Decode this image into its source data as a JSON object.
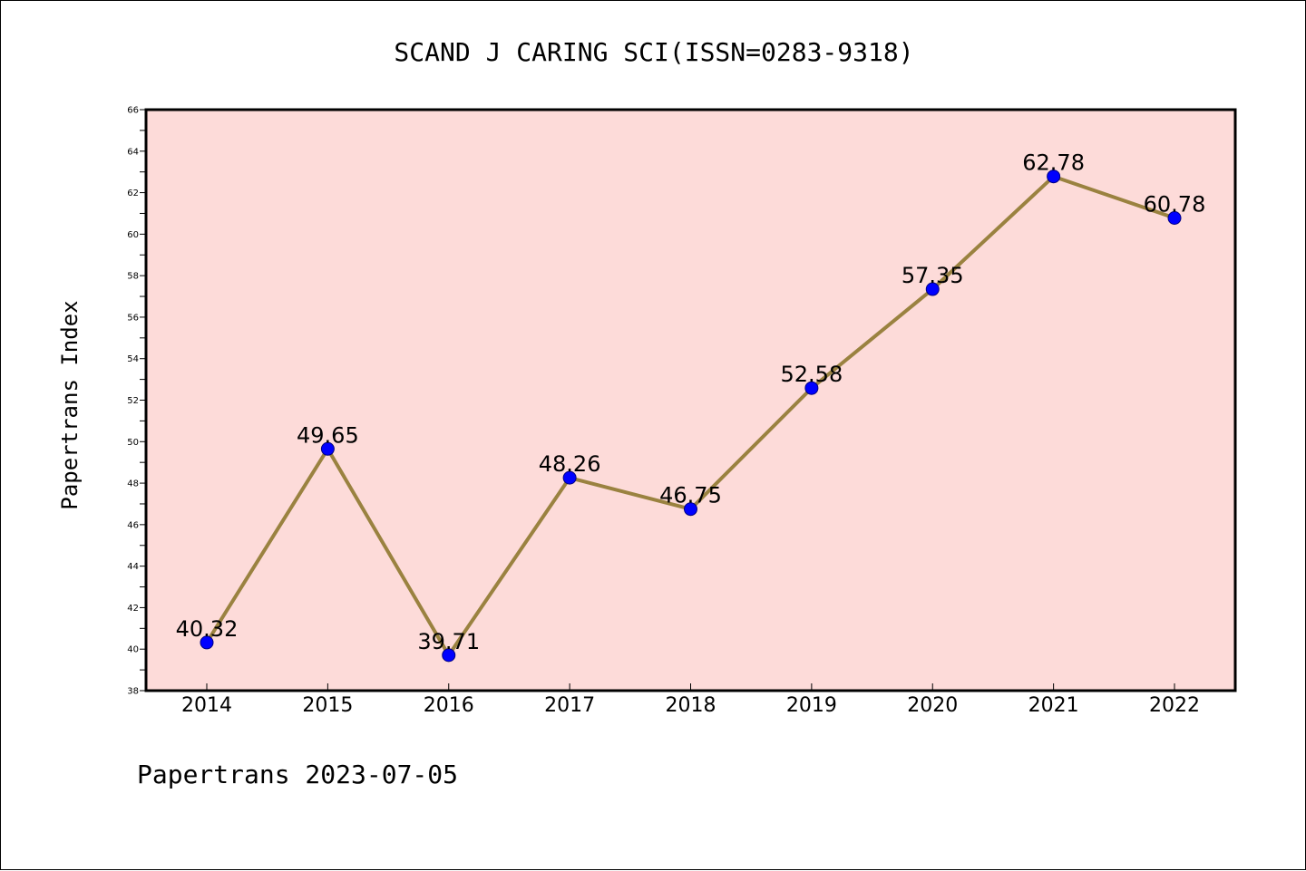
{
  "chart_data": {
    "type": "line",
    "title": "SCAND J CARING SCI(ISSN=0283-9318)",
    "xlabel": "",
    "ylabel": "Papertrans Index",
    "footer": "Papertrans 2023-07-05",
    "categories": [
      "2014",
      "2015",
      "2016",
      "2017",
      "2018",
      "2019",
      "2020",
      "2021",
      "2022"
    ],
    "series": [
      {
        "values": [
          40.32,
          49.65,
          39.71,
          48.26,
          46.75,
          52.58,
          57.35,
          62.78,
          60.78
        ],
        "labels": [
          "40.32",
          "49.65",
          "39.71",
          "48.26",
          "46.75",
          "52.58",
          "57.35",
          "62.78",
          "60.78"
        ]
      }
    ],
    "ylim": [
      38,
      66
    ],
    "yticks": [
      38,
      40,
      42,
      44,
      46,
      48,
      50,
      52,
      54,
      56,
      58,
      60,
      62,
      64,
      66
    ],
    "grid": false,
    "colors": {
      "plot_background": "#fddbd9",
      "line": "#9a8240",
      "marker_fill": "#0000ff",
      "marker_edge": "#000080"
    }
  }
}
